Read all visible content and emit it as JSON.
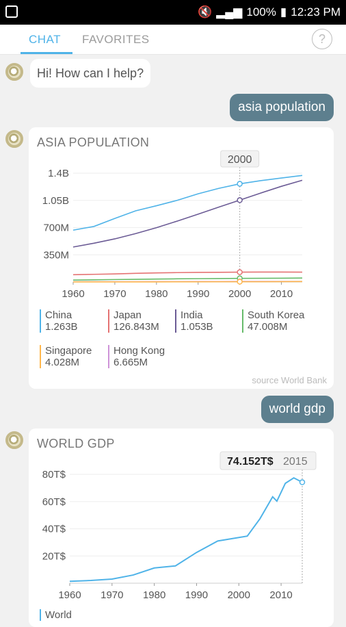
{
  "status_bar": {
    "battery": "100%",
    "time": "12:23 PM"
  },
  "tabs": [
    {
      "label": "CHAT"
    },
    {
      "label": "FAVORITES"
    }
  ],
  "help_label": "?",
  "messages": {
    "greeting": "Hi! How can I help?",
    "query1": "asia population",
    "query2": "world gdp"
  },
  "card1": {
    "title": "ASIA POPULATION",
    "tooltip": "2000",
    "source": "source World Bank",
    "legend": [
      {
        "name": "China",
        "value": "1.263B",
        "color": "#4fb3e8"
      },
      {
        "name": "Japan",
        "value": "126.843M",
        "color": "#e57373"
      },
      {
        "name": "India",
        "value": "1.053B",
        "color": "#6b5b95"
      },
      {
        "name": "South Korea",
        "value": "47.008M",
        "color": "#66bb6a"
      },
      {
        "name": "Singapore",
        "value": "4.028M",
        "color": "#ffb74d"
      },
      {
        "name": "Hong Kong",
        "value": "6.665M",
        "color": "#ce93d8"
      }
    ]
  },
  "card2": {
    "title": "WORLD GDP",
    "tooltip_value": "74.152T$",
    "tooltip_year": "2015",
    "legend": [
      {
        "name": "World",
        "color": "#4fb3e8"
      }
    ]
  },
  "chart_data": [
    {
      "type": "line",
      "title": "ASIA POPULATION",
      "x": [
        1960,
        1965,
        1970,
        1975,
        1980,
        1985,
        1990,
        1995,
        2000,
        2005,
        2010,
        2015
      ],
      "x_ticks": [
        "1960",
        "1970",
        "1980",
        "1990",
        "2000",
        "2010"
      ],
      "y_ticks": [
        "350M",
        "700M",
        "1.05B",
        "1.4B"
      ],
      "y_tick_values": [
        350,
        700,
        1050,
        1400
      ],
      "ylim": [
        0,
        1400
      ],
      "xlim": [
        1960,
        2015
      ],
      "highlight_x": 2000,
      "series": [
        {
          "name": "China",
          "color": "#4fb3e8",
          "values": [
            667,
            715,
            818,
            916,
            981,
            1051,
            1135,
            1205,
            1263,
            1304,
            1338,
            1371
          ]
        },
        {
          "name": "India",
          "color": "#6b5b95",
          "values": [
            450,
            499,
            555,
            623,
            699,
            784,
            873,
            964,
            1053,
            1144,
            1231,
            1309
          ]
        },
        {
          "name": "Japan",
          "color": "#e57373",
          "values": [
            94,
            99,
            104,
            112,
            117,
            121,
            124,
            125,
            127,
            128,
            128,
            127
          ]
        },
        {
          "name": "South Korea",
          "color": "#66bb6a",
          "values": [
            25,
            28,
            32,
            35,
            38,
            41,
            43,
            45,
            47,
            48,
            49,
            51
          ]
        },
        {
          "name": "Hong Kong",
          "color": "#ce93d8",
          "values": [
            3,
            4,
            4,
            4,
            5,
            5,
            6,
            6,
            7,
            7,
            7,
            7
          ]
        },
        {
          "name": "Singapore",
          "color": "#ffb74d",
          "values": [
            2,
            2,
            2,
            2,
            2,
            3,
            3,
            4,
            4,
            4,
            5,
            6
          ]
        }
      ]
    },
    {
      "type": "line",
      "title": "WORLD GDP",
      "x": [
        1960,
        1965,
        1970,
        1975,
        1980,
        1985,
        1990,
        1995,
        2000,
        2002,
        2005,
        2008,
        2009,
        2011,
        2013,
        2015
      ],
      "x_ticks": [
        "1960",
        "1970",
        "1980",
        "1990",
        "2000",
        "2010"
      ],
      "y_ticks": [
        "20T$",
        "40T$",
        "60T$",
        "80T$"
      ],
      "y_tick_values": [
        20,
        40,
        60,
        80
      ],
      "ylim": [
        0,
        80
      ],
      "xlim": [
        1960,
        2015
      ],
      "highlight_x": 2015,
      "series": [
        {
          "name": "World",
          "color": "#4fb3e8",
          "values": [
            1.4,
            2.0,
            3.0,
            6.0,
            11.2,
            12.7,
            22.6,
            31.0,
            33.6,
            34.6,
            47.4,
            63.5,
            60.3,
            73.4,
            77.4,
            74.2
          ]
        }
      ]
    }
  ]
}
